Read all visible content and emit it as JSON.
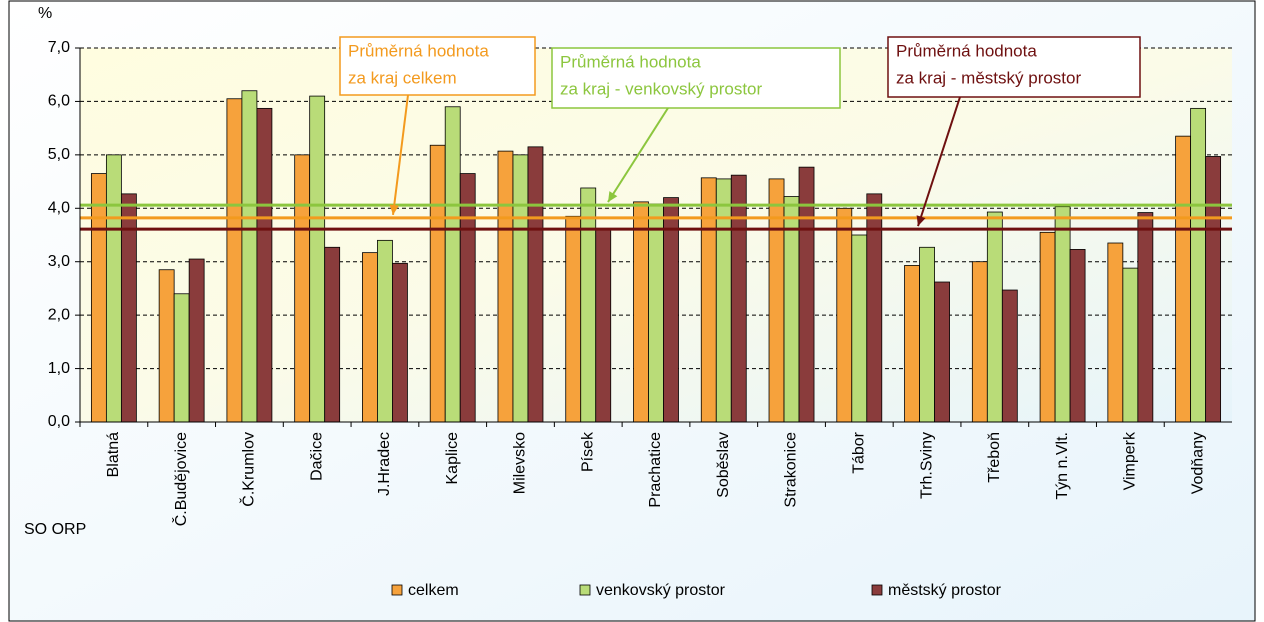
{
  "chart_data": {
    "type": "bar",
    "y_label": "%",
    "x_label": "SO ORP",
    "categories": [
      "Blatná",
      "Č.Budějovice",
      "Č.Krumlov",
      "Dačice",
      "J.Hradec",
      "Kaplice",
      "Milevsko",
      "Písek",
      "Prachatice",
      "Soběslav",
      "Strakonice",
      "Tábor",
      "Trh.Sviny",
      "Třeboň",
      "Týn n.Vlt.",
      "Vimperk",
      "Vodňany"
    ],
    "series": [
      {
        "name": "celkem",
        "color": "#f6a23c",
        "values": [
          4.65,
          2.85,
          6.05,
          5.0,
          3.17,
          5.18,
          5.07,
          3.85,
          4.12,
          4.57,
          4.55,
          4.0,
          2.93,
          3.0,
          3.55,
          3.35,
          5.35
        ]
      },
      {
        "name": "venkovský prostor",
        "color": "#b9dc78",
        "values": [
          5.0,
          2.4,
          6.2,
          6.1,
          3.4,
          5.9,
          5.0,
          4.38,
          4.08,
          4.55,
          4.22,
          3.5,
          3.27,
          3.93,
          4.03,
          2.88,
          5.87
        ]
      },
      {
        "name": "městský prostor",
        "color": "#8a3c3c",
        "values": [
          4.27,
          3.05,
          5.87,
          3.27,
          2.97,
          4.65,
          5.15,
          3.62,
          4.2,
          4.62,
          4.77,
          4.27,
          2.62,
          2.47,
          3.23,
          3.92,
          4.97
        ]
      }
    ],
    "reference_lines": [
      {
        "value": 3.82,
        "color": "#f39a1e",
        "label": [
          "Průměrná hodnota",
          "za kraj celkem"
        ]
      },
      {
        "value": 4.06,
        "color": "#8cc63e",
        "label": [
          "Průměrná hodnota",
          "za kraj - venkovský prostor"
        ]
      },
      {
        "value": 3.61,
        "color": "#6e1010",
        "label": [
          "Průměrná hodnota",
          "za kraj - městský prostor"
        ]
      }
    ],
    "ylim": [
      0,
      7
    ],
    "yticks": [
      {
        "value": 0,
        "label": "0,0"
      },
      {
        "value": 1,
        "label": "1,0"
      },
      {
        "value": 2,
        "label": "2,0"
      },
      {
        "value": 3,
        "label": "3,0"
      },
      {
        "value": 4,
        "label": "4,0"
      },
      {
        "value": 5,
        "label": "5,0"
      },
      {
        "value": 6,
        "label": "6,0"
      },
      {
        "value": 7,
        "label": "7,0"
      }
    ],
    "grid": true,
    "legend": "bottom"
  }
}
